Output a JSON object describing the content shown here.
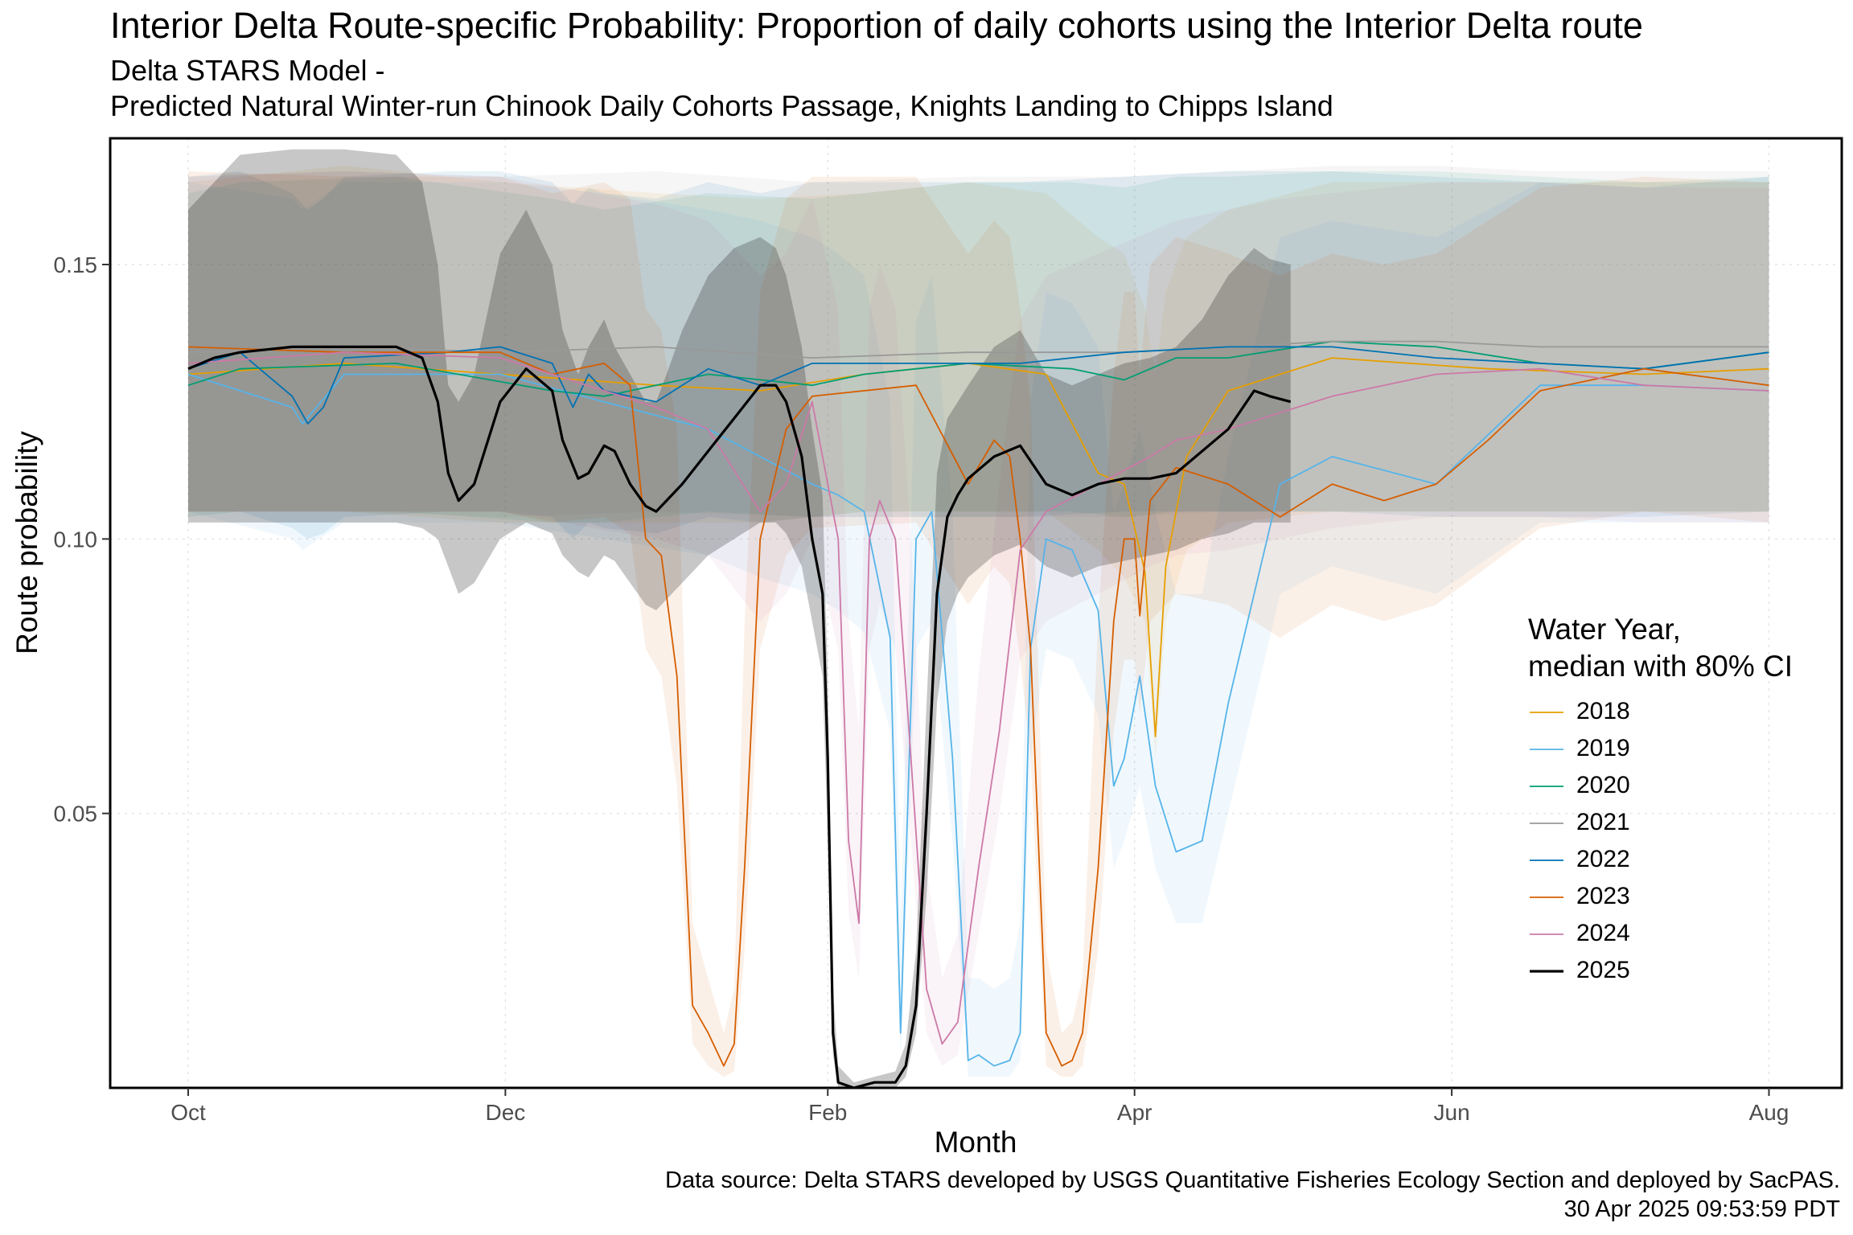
{
  "title": "Interior Delta Route-specific Probability: Proportion of daily cohorts using the Interior Delta route",
  "subtitle_line1": "Delta STARS Model -",
  "subtitle_line2": "Predicted Natural Winter-run Chinook Daily Cohorts Passage, Knights Landing to Chipps Island",
  "caption_line1": "Data source: Delta STARS developed by USGS Quantitative Fisheries Ecology Section and deployed by SacPAS.",
  "caption_line2": "30 Apr 2025 09:53:59 PDT",
  "legend": {
    "title_line1": "Water Year,",
    "title_line2": "median with 80% CI"
  },
  "chart_data": {
    "type": "line",
    "title": "Interior Delta Route-specific Probability: Proportion of daily cohorts using the Interior Delta route",
    "xlabel": "Month",
    "ylabel": "Route probability",
    "x_unit": "day of water year (Oct 1 = 0)",
    "x_ticks": [
      {
        "label": "Oct",
        "x": 0
      },
      {
        "label": "Dec",
        "x": 61
      },
      {
        "label": "Feb",
        "x": 123
      },
      {
        "label": "Apr",
        "x": 182
      },
      {
        "label": "Jun",
        "x": 243
      },
      {
        "label": "Aug",
        "x": 304
      }
    ],
    "xlim": [
      -15,
      318
    ],
    "y_ticks": [
      0.05,
      0.1,
      0.15
    ],
    "ylim": [
      0,
      0.173
    ],
    "grid": true,
    "legend_position": "right",
    "series": [
      {
        "name": "2018",
        "color": "#E69F00",
        "stroke_width": 1.8,
        "x": [
          0,
          30,
          60,
          90,
          110,
          130,
          150,
          165,
          175,
          180,
          184,
          186,
          188,
          192,
          200,
          220,
          250,
          280,
          304
        ],
        "y": [
          0.13,
          0.132,
          0.13,
          0.128,
          0.127,
          0.13,
          0.132,
          0.13,
          0.112,
          0.11,
          0.094,
          0.064,
          0.095,
          0.115,
          0.127,
          0.133,
          0.131,
          0.13,
          0.131
        ],
        "lo": [
          0.105,
          0.105,
          0.103,
          0.103,
          0.103,
          0.105,
          0.105,
          0.105,
          0.098,
          0.093,
          0.085,
          0.06,
          0.085,
          0.098,
          0.103,
          0.105,
          0.105,
          0.105,
          0.105
        ],
        "hi": [
          0.165,
          0.168,
          0.165,
          0.163,
          0.162,
          0.163,
          0.165,
          0.163,
          0.155,
          0.152,
          0.142,
          0.13,
          0.145,
          0.155,
          0.16,
          0.165,
          0.165,
          0.165,
          0.165
        ]
      },
      {
        "name": "2019",
        "color": "#56B4E9",
        "stroke_width": 1.8,
        "x": [
          0,
          20,
          22,
          30,
          60,
          80,
          100,
          110,
          120,
          125,
          130,
          135,
          137,
          140,
          143,
          147,
          150,
          152,
          155,
          158,
          160,
          162,
          165,
          170,
          175,
          178,
          180,
          183,
          186,
          190,
          195,
          200,
          210,
          220,
          240,
          260,
          280,
          304
        ],
        "y": [
          0.13,
          0.124,
          0.121,
          0.13,
          0.13,
          0.125,
          0.12,
          0.115,
          0.11,
          0.108,
          0.105,
          0.082,
          0.01,
          0.1,
          0.105,
          0.06,
          0.005,
          0.006,
          0.004,
          0.005,
          0.01,
          0.08,
          0.1,
          0.098,
          0.087,
          0.055,
          0.06,
          0.075,
          0.055,
          0.043,
          0.045,
          0.07,
          0.11,
          0.115,
          0.11,
          0.128,
          0.128,
          0.127
        ],
        "lo": [
          0.105,
          0.1,
          0.098,
          0.103,
          0.103,
          0.1,
          0.097,
          0.093,
          0.09,
          0.087,
          0.083,
          0.065,
          0.005,
          0.08,
          0.085,
          0.045,
          0.002,
          0.002,
          0.002,
          0.002,
          0.005,
          0.06,
          0.08,
          0.078,
          0.068,
          0.04,
          0.045,
          0.055,
          0.04,
          0.03,
          0.03,
          0.05,
          0.09,
          0.095,
          0.09,
          0.103,
          0.103,
          0.103
        ],
        "hi": [
          0.165,
          0.162,
          0.16,
          0.165,
          0.165,
          0.163,
          0.16,
          0.158,
          0.155,
          0.152,
          0.148,
          0.125,
          0.03,
          0.14,
          0.148,
          0.105,
          0.02,
          0.02,
          0.018,
          0.02,
          0.03,
          0.125,
          0.145,
          0.143,
          0.135,
          0.105,
          0.11,
          0.12,
          0.105,
          0.09,
          0.09,
          0.115,
          0.155,
          0.158,
          0.155,
          0.165,
          0.165,
          0.165
        ]
      },
      {
        "name": "2020",
        "color": "#009E73",
        "stroke_width": 1.8,
        "x": [
          0,
          10,
          40,
          70,
          80,
          100,
          120,
          130,
          150,
          170,
          180,
          190,
          200,
          220,
          240,
          260,
          280,
          304
        ],
        "y": [
          0.128,
          0.131,
          0.132,
          0.127,
          0.126,
          0.13,
          0.128,
          0.13,
          0.132,
          0.131,
          0.129,
          0.133,
          0.133,
          0.136,
          0.135,
          0.132,
          0.131,
          0.134
        ],
        "lo": [
          0.104,
          0.105,
          0.105,
          0.103,
          0.103,
          0.105,
          0.104,
          0.105,
          0.105,
          0.105,
          0.104,
          0.105,
          0.105,
          0.105,
          0.105,
          0.105,
          0.105,
          0.105
        ],
        "hi": [
          0.163,
          0.165,
          0.166,
          0.162,
          0.16,
          0.163,
          0.162,
          0.163,
          0.165,
          0.165,
          0.164,
          0.166,
          0.166,
          0.167,
          0.167,
          0.166,
          0.165,
          0.166
        ]
      },
      {
        "name": "2021",
        "color": "#999999",
        "stroke_width": 1.8,
        "x": [
          0,
          30,
          60,
          90,
          120,
          150,
          180,
          200,
          220,
          240,
          260,
          280,
          304
        ],
        "y": [
          0.134,
          0.135,
          0.134,
          0.135,
          0.133,
          0.134,
          0.134,
          0.135,
          0.136,
          0.136,
          0.135,
          0.135,
          0.135
        ],
        "lo": [
          0.105,
          0.105,
          0.104,
          0.105,
          0.104,
          0.104,
          0.104,
          0.105,
          0.105,
          0.105,
          0.105,
          0.105,
          0.105
        ],
        "hi": [
          0.166,
          0.167,
          0.166,
          0.167,
          0.165,
          0.166,
          0.166,
          0.167,
          0.168,
          0.168,
          0.167,
          0.167,
          0.167
        ]
      },
      {
        "name": "2022",
        "color": "#0072B2",
        "stroke_width": 1.8,
        "x": [
          0,
          10,
          20,
          23,
          26,
          30,
          50,
          60,
          70,
          74,
          77,
          80,
          90,
          100,
          110,
          120,
          140,
          160,
          180,
          200,
          220,
          240,
          260,
          280,
          304
        ],
        "y": [
          0.131,
          0.134,
          0.126,
          0.121,
          0.124,
          0.133,
          0.134,
          0.135,
          0.132,
          0.124,
          0.13,
          0.127,
          0.125,
          0.131,
          0.128,
          0.132,
          0.132,
          0.132,
          0.134,
          0.135,
          0.135,
          0.133,
          0.132,
          0.131,
          0.134
        ],
        "lo": [
          0.105,
          0.105,
          0.102,
          0.1,
          0.101,
          0.104,
          0.105,
          0.105,
          0.104,
          0.1,
          0.103,
          0.102,
          0.101,
          0.104,
          0.103,
          0.104,
          0.104,
          0.104,
          0.105,
          0.105,
          0.105,
          0.104,
          0.104,
          0.104,
          0.105
        ],
        "hi": [
          0.166,
          0.167,
          0.163,
          0.16,
          0.162,
          0.166,
          0.167,
          0.167,
          0.165,
          0.161,
          0.164,
          0.163,
          0.162,
          0.165,
          0.163,
          0.165,
          0.165,
          0.165,
          0.166,
          0.167,
          0.167,
          0.166,
          0.165,
          0.164,
          0.166
        ]
      },
      {
        "name": "2023",
        "color": "#D55E00",
        "stroke_width": 1.8,
        "x": [
          0,
          30,
          60,
          70,
          80,
          85,
          88,
          91,
          94,
          97,
          100,
          103,
          105,
          107,
          110,
          115,
          120,
          140,
          150,
          155,
          158,
          160,
          162,
          165,
          168,
          170,
          172,
          175,
          178,
          180,
          182,
          183,
          185,
          190,
          200,
          210,
          220,
          230,
          240,
          250,
          260,
          280,
          304
        ],
        "y": [
          0.135,
          0.134,
          0.134,
          0.13,
          0.132,
          0.128,
          0.1,
          0.097,
          0.075,
          0.015,
          0.01,
          0.004,
          0.008,
          0.04,
          0.1,
          0.12,
          0.126,
          0.128,
          0.11,
          0.118,
          0.115,
          0.1,
          0.08,
          0.01,
          0.004,
          0.005,
          0.01,
          0.04,
          0.085,
          0.1,
          0.1,
          0.086,
          0.107,
          0.113,
          0.11,
          0.104,
          0.11,
          0.107,
          0.11,
          0.118,
          0.127,
          0.131,
          0.128
        ],
        "lo": [
          0.105,
          0.105,
          0.105,
          0.103,
          0.104,
          0.101,
          0.08,
          0.075,
          0.055,
          0.008,
          0.004,
          0.002,
          0.003,
          0.025,
          0.08,
          0.097,
          0.102,
          0.103,
          0.088,
          0.095,
          0.092,
          0.078,
          0.06,
          0.004,
          0.002,
          0.002,
          0.004,
          0.025,
          0.065,
          0.078,
          0.078,
          0.068,
          0.085,
          0.09,
          0.088,
          0.082,
          0.088,
          0.085,
          0.088,
          0.095,
          0.102,
          0.105,
          0.103
        ],
        "hi": [
          0.167,
          0.166,
          0.166,
          0.163,
          0.165,
          0.162,
          0.142,
          0.138,
          0.12,
          0.03,
          0.02,
          0.01,
          0.018,
          0.085,
          0.145,
          0.162,
          0.166,
          0.166,
          0.152,
          0.158,
          0.155,
          0.142,
          0.125,
          0.025,
          0.01,
          0.012,
          0.02,
          0.085,
          0.13,
          0.145,
          0.145,
          0.13,
          0.15,
          0.155,
          0.152,
          0.148,
          0.152,
          0.15,
          0.152,
          0.158,
          0.164,
          0.166,
          0.165
        ]
      },
      {
        "name": "2024",
        "color": "#CC79A7",
        "stroke_width": 1.8,
        "x": [
          0,
          30,
          60,
          90,
          100,
          110,
          115,
          120,
          125,
          127,
          129,
          131,
          133,
          136,
          139,
          142,
          145,
          148,
          152,
          156,
          160,
          165,
          175,
          185,
          190,
          200,
          210,
          220,
          230,
          240,
          260,
          280,
          304
        ],
        "y": [
          0.132,
          0.134,
          0.133,
          0.124,
          0.12,
          0.105,
          0.11,
          0.125,
          0.1,
          0.045,
          0.03,
          0.1,
          0.107,
          0.1,
          0.06,
          0.018,
          0.008,
          0.012,
          0.04,
          0.065,
          0.098,
          0.105,
          0.11,
          0.115,
          0.118,
          0.12,
          0.123,
          0.126,
          0.128,
          0.13,
          0.131,
          0.128,
          0.127
        ],
        "lo": [
          0.105,
          0.105,
          0.105,
          0.1,
          0.097,
          0.085,
          0.09,
          0.1,
          0.08,
          0.032,
          0.02,
          0.08,
          0.088,
          0.08,
          0.045,
          0.01,
          0.004,
          0.006,
          0.028,
          0.05,
          0.078,
          0.085,
          0.09,
          0.095,
          0.097,
          0.098,
          0.1,
          0.102,
          0.103,
          0.104,
          0.104,
          0.103,
          0.103
        ],
        "hi": [
          0.166,
          0.167,
          0.166,
          0.161,
          0.158,
          0.148,
          0.152,
          0.162,
          0.142,
          0.085,
          0.065,
          0.142,
          0.15,
          0.142,
          0.1,
          0.04,
          0.02,
          0.028,
          0.075,
          0.11,
          0.14,
          0.148,
          0.152,
          0.156,
          0.158,
          0.16,
          0.162,
          0.163,
          0.164,
          0.165,
          0.165,
          0.164,
          0.164
        ]
      },
      {
        "name": "2025",
        "color": "#000000",
        "stroke_width": 3.2,
        "x": [
          0,
          5,
          10,
          20,
          30,
          40,
          45,
          48,
          50,
          52,
          55,
          60,
          65,
          70,
          72,
          75,
          77,
          80,
          82,
          85,
          88,
          90,
          92,
          95,
          100,
          105,
          110,
          113,
          115,
          118,
          120,
          122,
          123,
          124,
          125,
          128,
          132,
          136,
          138,
          140,
          142,
          144,
          146,
          148,
          150,
          155,
          160,
          165,
          170,
          175,
          180,
          185,
          190,
          195,
          200,
          205,
          208,
          212
        ],
        "y": [
          0.131,
          0.133,
          0.134,
          0.135,
          0.135,
          0.135,
          0.133,
          0.125,
          0.112,
          0.107,
          0.11,
          0.125,
          0.131,
          0.127,
          0.118,
          0.111,
          0.112,
          0.117,
          0.116,
          0.11,
          0.106,
          0.105,
          0.107,
          0.11,
          0.116,
          0.122,
          0.128,
          0.128,
          0.125,
          0.115,
          0.1,
          0.09,
          0.06,
          0.01,
          0.001,
          0.0,
          0.001,
          0.001,
          0.004,
          0.015,
          0.05,
          0.09,
          0.104,
          0.108,
          0.111,
          0.115,
          0.117,
          0.11,
          0.108,
          0.11,
          0.111,
          0.111,
          0.112,
          0.116,
          0.12,
          0.127,
          0.126,
          0.125
        ],
        "lo": [
          0.103,
          0.103,
          0.103,
          0.103,
          0.103,
          0.103,
          0.102,
          0.1,
          0.095,
          0.09,
          0.092,
          0.1,
          0.103,
          0.101,
          0.097,
          0.094,
          0.093,
          0.097,
          0.096,
          0.092,
          0.088,
          0.087,
          0.089,
          0.092,
          0.097,
          0.1,
          0.103,
          0.103,
          0.101,
          0.095,
          0.085,
          0.075,
          0.045,
          0.006,
          0.0,
          0.0,
          0.0,
          0.0,
          0.002,
          0.01,
          0.035,
          0.07,
          0.085,
          0.09,
          0.093,
          0.097,
          0.099,
          0.095,
          0.093,
          0.095,
          0.096,
          0.097,
          0.098,
          0.1,
          0.101,
          0.103,
          0.103,
          0.103
        ],
        "hi": [
          0.16,
          0.165,
          0.17,
          0.171,
          0.171,
          0.17,
          0.165,
          0.15,
          0.128,
          0.125,
          0.13,
          0.152,
          0.16,
          0.15,
          0.138,
          0.13,
          0.135,
          0.14,
          0.135,
          0.13,
          0.125,
          0.125,
          0.13,
          0.138,
          0.148,
          0.153,
          0.155,
          0.153,
          0.148,
          0.135,
          0.12,
          0.108,
          0.075,
          0.018,
          0.004,
          0.001,
          0.002,
          0.003,
          0.008,
          0.025,
          0.07,
          0.112,
          0.122,
          0.125,
          0.128,
          0.135,
          0.138,
          0.13,
          0.128,
          0.13,
          0.132,
          0.133,
          0.135,
          0.14,
          0.148,
          0.153,
          0.151,
          0.15
        ]
      }
    ]
  }
}
